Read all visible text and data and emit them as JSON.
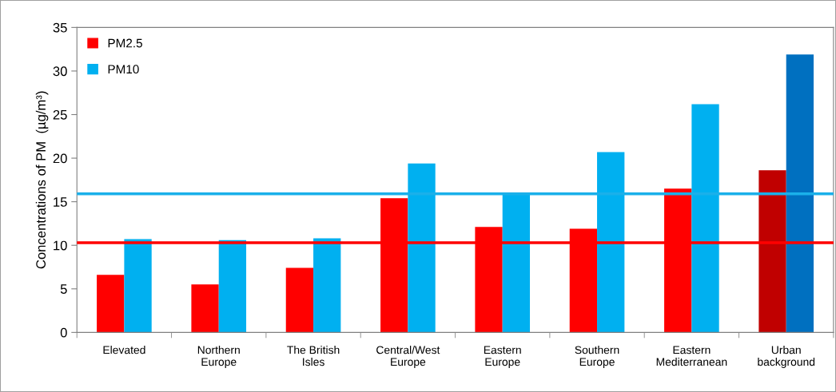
{
  "chart_data": {
    "type": "bar",
    "ylabel": "Concentrations of PM  (µg/m³)",
    "categories": [
      "Elevated",
      "Northern\nEurope",
      "The British\nIsles",
      "Central/West\nEurope",
      "Eastern\nEurope",
      "Southern\nEurope",
      "Eastern\nMediterranean",
      "Urban\nbackground"
    ],
    "series": [
      {
        "name": "PM2.5",
        "color": "#ff0000",
        "colors": [
          "#ff0000",
          "#ff0000",
          "#ff0000",
          "#ff0000",
          "#ff0000",
          "#ff0000",
          "#ff0000",
          "#c00000"
        ],
        "values": [
          6.6,
          5.5,
          7.4,
          15.4,
          12.1,
          11.9,
          16.5,
          18.6
        ]
      },
      {
        "name": "PM10",
        "color": "#00b0f0",
        "colors": [
          "#00b0f0",
          "#00b0f0",
          "#00b0f0",
          "#00b0f0",
          "#00b0f0",
          "#00b0f0",
          "#00b0f0",
          "#0070c0"
        ],
        "values": [
          10.7,
          10.6,
          10.8,
          19.4,
          16.0,
          20.7,
          26.2,
          31.9
        ]
      }
    ],
    "ref_lines": [
      {
        "axis": "y",
        "value": 15.9,
        "color": "#1ab0ea"
      },
      {
        "axis": "y",
        "value": 10.3,
        "color": "#ff0000"
      }
    ],
    "ylim": [
      0,
      35
    ],
    "yticks": [
      0,
      5,
      10,
      15,
      20,
      25,
      30,
      35
    ],
    "grid": false,
    "legend": "top left"
  }
}
